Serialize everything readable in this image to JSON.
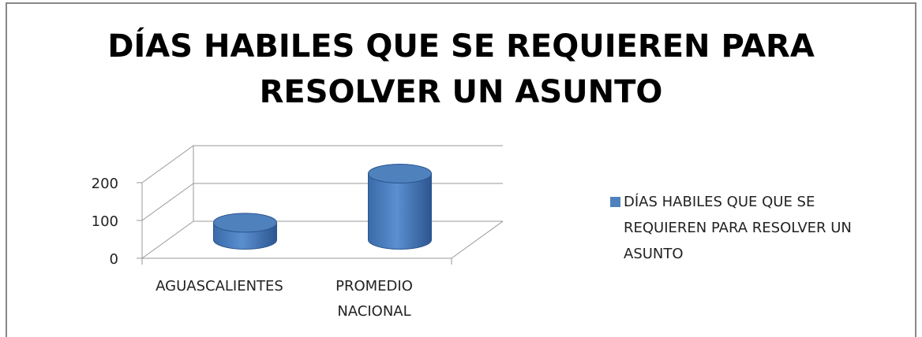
{
  "chart_data": {
    "type": "bar3d",
    "title": "DÍAS HABILES QUE SE REQUIEREN PARA RESOLVER UN ASUNTO",
    "categories": [
      "AGUASCALIENTES",
      "PROMEDIO NACIONAL"
    ],
    "series": [
      {
        "name": "DÍAS HABILES QUE QUE SE REQUIEREN PARA RESOLVER UN ASUNTO",
        "color": "#4f81bd",
        "values": [
          45,
          175
        ]
      }
    ],
    "ylim": [
      0,
      200
    ],
    "yticks": [
      0,
      100,
      200
    ],
    "grid": true,
    "legend": "right"
  }
}
